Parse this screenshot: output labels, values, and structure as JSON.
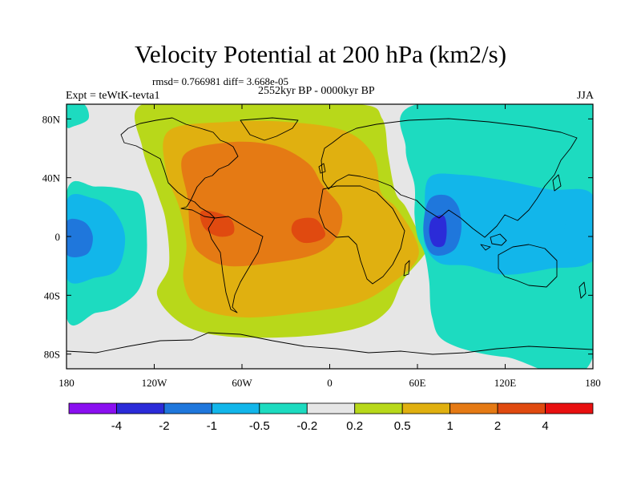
{
  "chart_data": {
    "type": "contour-map",
    "title": "Velocity Potential at 200 hPa (km2/s)",
    "stats_line": "rmsd= 0.766981  diff= 3.668e-05",
    "subtitle": "2552kyr BP - 0000kyr BP",
    "left_label": "Expt = teWtK-tevta1",
    "right_label": "JJA",
    "lon_range": [
      -180,
      180
    ],
    "lat_range": [
      -90,
      90
    ],
    "x_ticks": [
      {
        "value": -180,
        "label": "180"
      },
      {
        "value": -120,
        "label": "120W"
      },
      {
        "value": -60,
        "label": "60W"
      },
      {
        "value": 0,
        "label": "0"
      },
      {
        "value": 60,
        "label": "60E"
      },
      {
        "value": 120,
        "label": "120E"
      },
      {
        "value": 180,
        "label": "180"
      }
    ],
    "y_ticks": [
      {
        "value": 80,
        "label": "80N"
      },
      {
        "value": 40,
        "label": "40N"
      },
      {
        "value": 0,
        "label": "0"
      },
      {
        "value": -40,
        "label": "40S"
      },
      {
        "value": -80,
        "label": "80S"
      }
    ],
    "colorbar": {
      "labels": [
        "-4",
        "-2",
        "-1",
        "-0.5",
        "-0.2",
        "0.2",
        "0.5",
        "1",
        "2",
        "4"
      ],
      "colors": [
        "#8a0ff0",
        "#2b2bd8",
        "#1f77dc",
        "#12b6ea",
        "#1ddbc0",
        "#e6e6e6",
        "#b8d81a",
        "#e0b010",
        "#e57a14",
        "#e04a10",
        "#e81010"
      ]
    },
    "fields": [
      {
        "level": "0.2 to 0.5",
        "color": "#b8d81a",
        "polygon": [
          [
            -128,
            90
          ],
          [
            -60,
            90
          ],
          [
            20,
            90
          ],
          [
            36,
            80
          ],
          [
            40,
            55
          ],
          [
            45,
            30
          ],
          [
            52,
            20
          ],
          [
            62,
            0
          ],
          [
            66,
            -10
          ],
          [
            50,
            -30
          ],
          [
            40,
            -50
          ],
          [
            20,
            -62
          ],
          [
            -20,
            -68
          ],
          [
            -70,
            -68
          ],
          [
            -100,
            -60
          ],
          [
            -118,
            -40
          ],
          [
            -110,
            -20
          ],
          [
            -112,
            10
          ],
          [
            -118,
            30
          ],
          [
            -128,
            60
          ]
        ]
      },
      {
        "level": "0.5 to 1",
        "color": "#e0b010",
        "polygon": [
          [
            -110,
            72
          ],
          [
            -70,
            78
          ],
          [
            -30,
            78
          ],
          [
            10,
            72
          ],
          [
            30,
            55
          ],
          [
            35,
            30
          ],
          [
            45,
            20
          ],
          [
            58,
            0
          ],
          [
            60,
            -15
          ],
          [
            45,
            -30
          ],
          [
            20,
            -45
          ],
          [
            -20,
            -52
          ],
          [
            -60,
            -55
          ],
          [
            -90,
            -48
          ],
          [
            -100,
            -30
          ],
          [
            -98,
            -5
          ],
          [
            -103,
            20
          ],
          [
            -112,
            45
          ]
        ]
      },
      {
        "level": "1 to 2",
        "color": "#e57a14",
        "polygon": [
          [
            -100,
            55
          ],
          [
            -70,
            64
          ],
          [
            -38,
            62
          ],
          [
            -15,
            50
          ],
          [
            -5,
            35
          ],
          [
            8,
            18
          ],
          [
            5,
            0
          ],
          [
            -10,
            -12
          ],
          [
            -40,
            -18
          ],
          [
            -70,
            -20
          ],
          [
            -88,
            -12
          ],
          [
            -95,
            0
          ],
          [
            -97,
            25
          ]
        ]
      },
      {
        "level": "2 to 4",
        "color": "#e04a10",
        "polygon": [
          [
            -88,
            17
          ],
          [
            -76,
            16
          ],
          [
            -67,
            11
          ],
          [
            -66,
            2
          ],
          [
            -76,
            0
          ],
          [
            -86,
            6
          ]
        ]
      },
      {
        "level": "2 to 4",
        "color": "#e04a10",
        "polygon": [
          [
            -23,
            11
          ],
          [
            -10,
            12
          ],
          [
            -3,
            2
          ],
          [
            -8,
            -3
          ],
          [
            -19,
            -4
          ],
          [
            -26,
            3
          ]
        ]
      },
      {
        "level": "-0.5 to -0.2",
        "color": "#1ddbc0",
        "polygon": [
          [
            60,
            90
          ],
          [
            180,
            90
          ],
          [
            180,
            -82
          ],
          [
            120,
            -82
          ],
          [
            80,
            -72
          ],
          [
            70,
            -55
          ],
          [
            68,
            -30
          ],
          [
            65,
            -12
          ],
          [
            60,
            0
          ],
          [
            58,
            15
          ],
          [
            58,
            35
          ],
          [
            52,
            60
          ]
        ]
      },
      {
        "level": "-1 to -0.5",
        "color": "#12b6ea",
        "polygon": [
          [
            68,
            40
          ],
          [
            90,
            42
          ],
          [
            120,
            38
          ],
          [
            150,
            32
          ],
          [
            180,
            28
          ],
          [
            180,
            -15
          ],
          [
            150,
            -22
          ],
          [
            120,
            -26
          ],
          [
            95,
            -20
          ],
          [
            75,
            -18
          ],
          [
            65,
            -5
          ],
          [
            65,
            15
          ]
        ]
      },
      {
        "level": "-2 to -1",
        "color": "#1f77dc",
        "polygon": [
          [
            68,
            25
          ],
          [
            80,
            28
          ],
          [
            88,
            20
          ],
          [
            90,
            5
          ],
          [
            86,
            -8
          ],
          [
            76,
            -13
          ],
          [
            68,
            -10
          ],
          [
            64,
            5
          ]
        ]
      },
      {
        "level": "-4 to -2",
        "color": "#2b2bd8",
        "polygon": [
          [
            70,
            12
          ],
          [
            78,
            14
          ],
          [
            80,
            4
          ],
          [
            78,
            -6
          ],
          [
            71,
            -6
          ],
          [
            68,
            3
          ]
        ]
      },
      {
        "level": "-0.5 to -0.2",
        "color": "#1ddbc0",
        "polygon": [
          [
            -180,
            30
          ],
          [
            -160,
            34
          ],
          [
            -140,
            32
          ],
          [
            -128,
            25
          ],
          [
            -125,
            -10
          ],
          [
            -130,
            -35
          ],
          [
            -145,
            -48
          ],
          [
            -160,
            -52
          ],
          [
            -180,
            -55
          ]
        ]
      },
      {
        "level": "-1 to -0.5",
        "color": "#12b6ea",
        "polygon": [
          [
            -180,
            24
          ],
          [
            -162,
            26
          ],
          [
            -148,
            18
          ],
          [
            -140,
            0
          ],
          [
            -145,
            -22
          ],
          [
            -160,
            -28
          ],
          [
            -180,
            -28
          ]
        ]
      },
      {
        "level": "-2 to -1",
        "color": "#1f77dc",
        "polygon": [
          [
            -180,
            10
          ],
          [
            -168,
            10
          ],
          [
            -162,
            0
          ],
          [
            -166,
            -12
          ],
          [
            -180,
            -12
          ]
        ]
      },
      {
        "level": "-0.5 to -0.2",
        "color": "#1ddbc0",
        "polygon": [
          [
            -180,
            90
          ],
          [
            -168,
            90
          ],
          [
            -165,
            80
          ],
          [
            -175,
            75
          ],
          [
            -180,
            75
          ]
        ]
      },
      {
        "level": "-1 to -0.5",
        "color": "#12b6ea",
        "polygon": [
          [
            165,
            15
          ],
          [
            180,
            16
          ],
          [
            180,
            -16
          ],
          [
            166,
            -14
          ],
          [
            160,
            0
          ]
        ]
      }
    ]
  }
}
